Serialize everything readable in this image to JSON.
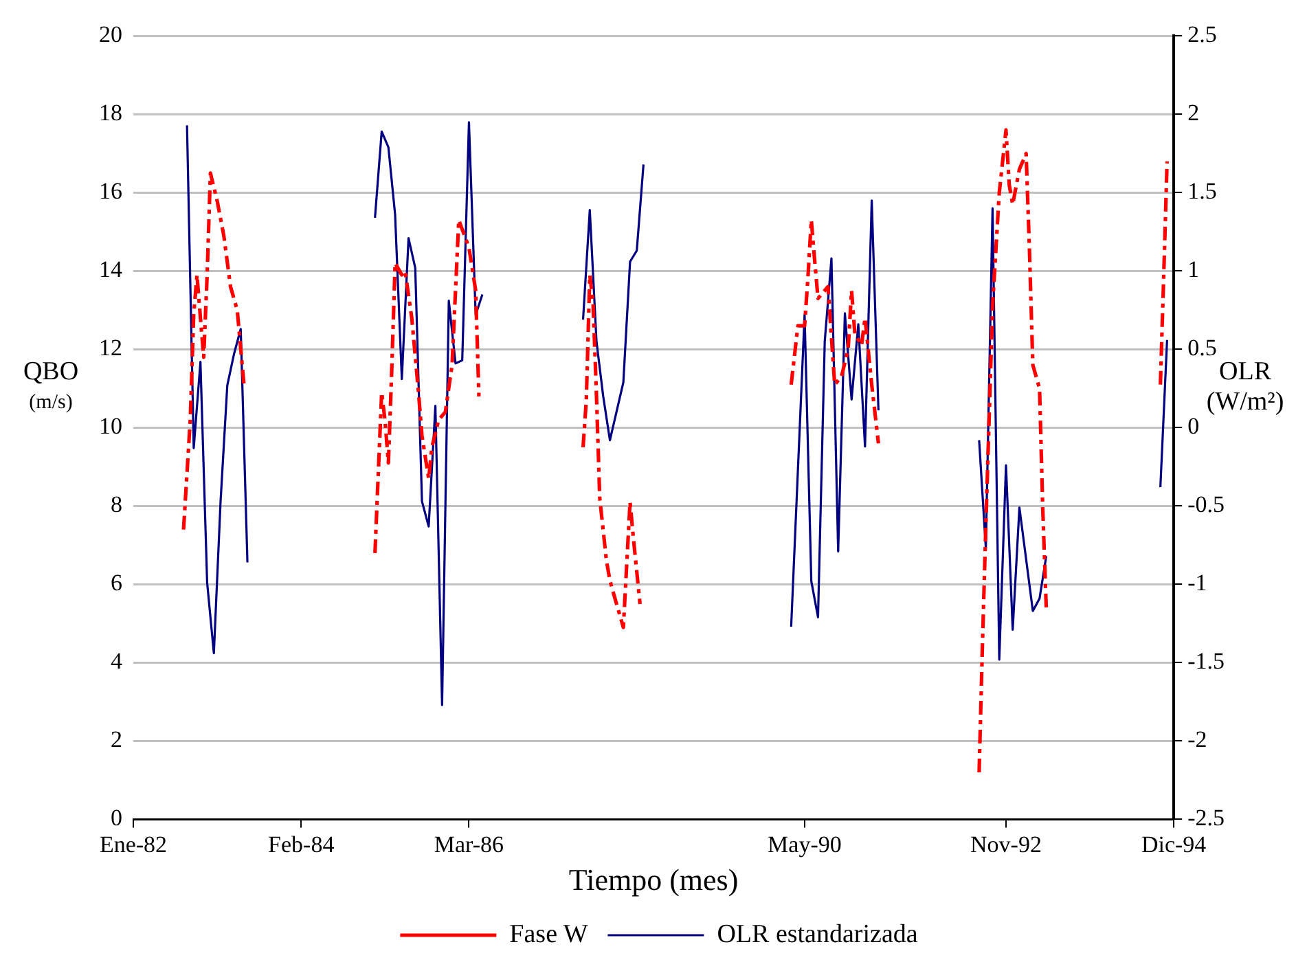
{
  "chart_data": {
    "type": "line",
    "xlabel": "Tiempo (mes)",
    "ylabel": "QBO (m/s)",
    "y2label": "OLR (W/m²)",
    "xlim": [
      "1982-01",
      "1994-12"
    ],
    "xticks": [
      {
        "value": "1982-01",
        "label": "Ene-82"
      },
      {
        "value": "1984-02",
        "label": "Feb-84"
      },
      {
        "value": "1986-03",
        "label": "Mar-86"
      },
      {
        "value": "1990-05",
        "label": "May-90"
      },
      {
        "value": "1992-11",
        "label": "Nov-92"
      },
      {
        "value": "1994-12",
        "label": "Dic-94"
      }
    ],
    "ylim": [
      0,
      20
    ],
    "yticks": [
      0,
      2,
      4,
      6,
      8,
      10,
      12,
      14,
      16,
      18,
      20
    ],
    "y2lim": [
      -2.5,
      2.5
    ],
    "y2ticks": [
      -2.5,
      -2,
      -1.5,
      -1,
      -0.5,
      0,
      0.5,
      1,
      1.5,
      2,
      2.5
    ],
    "grid": "y",
    "legend": "bottom",
    "marker": "none",
    "series": [
      {
        "name": "Fase W",
        "color": "#ff0000",
        "line_style": "dashed",
        "x": [
          "1982-08-16",
          "1982-09-16",
          "1982-10",
          "1982-10-16",
          "1982-11",
          "1982-11-16",
          "1982-12",
          "1982-12-16",
          "1983-01-16",
          "1983-02-16",
          "1983-03-16",
          "1983-04-16",
          "1983-05-16",
          "1984-01",
          "1985-01",
          "1985-01-16",
          "1985-02",
          "1985-02-16",
          "1985-03",
          "1985-03-16",
          "1985-04",
          "1985-05",
          "1985-05-16",
          "1985-06-16",
          "1985-07-16",
          "1985-08",
          "1985-09",
          "1985-09-16",
          "1985-10-16",
          "1985-11-16",
          "1985-12-16",
          "1986-01-16",
          "1986-03",
          "1986-04",
          "1986-04-16",
          "1987-01",
          "1987-08",
          "1987-08-16",
          "1987-09",
          "1987-09-16",
          "1987-10",
          "1987-10-16",
          "1987-11-16",
          "1987-12",
          "1987-12-16",
          "1988-02",
          "1988-03",
          "1988-03-16",
          "1988-04-16",
          "1989-01",
          "1990-03",
          "1990-04",
          "1990-05",
          "1990-05-16",
          "1990-06",
          "1990-06-16",
          "1990-07",
          "1990-08-16",
          "1990-09-16",
          "1990-10-16",
          "1990-11-16",
          "1990-12",
          "1990-12-16",
          "1991-01-16",
          "1991-02",
          "1991-03",
          "1991-04",
          "1992-01",
          "1992-07",
          "1992-07-16",
          "1992-08",
          "1992-08-16",
          "1992-09",
          "1992-10",
          "1992-11",
          "1992-11-16",
          "1992-12",
          "1993-01",
          "1993-02",
          "1993-02-16",
          "1993-03",
          "1993-04",
          "1993-04-16",
          "1993-05",
          "1994-01",
          "1994-10",
          "1994-10-16",
          "1994-11"
        ],
        "values": [
          7.4,
          10.2,
          12.9,
          13.9,
          12.8,
          11.8,
          13.9,
          16.5,
          15.8,
          14.9,
          13.6,
          13.0,
          11.1,
          null,
          6.8,
          8.8,
          10.9,
          10.2,
          9.1,
          11.4,
          14.2,
          13.9,
          14.0,
          12.8,
          10.9,
          9.8,
          8.7,
          9.5,
          10.2,
          10.4,
          11.6,
          15.3,
          14.6,
          13.5,
          10.8,
          null,
          9.5,
          10.7,
          13.9,
          13.2,
          10.8,
          8.2,
          6.6,
          6.1,
          5.8,
          4.9,
          8.1,
          7.2,
          5.5,
          null,
          11.1,
          12.6,
          12.6,
          13.8,
          15.3,
          14.3,
          13.3,
          13.6,
          11.1,
          11.3,
          12.0,
          13.5,
          12.4,
          12.1,
          12.8,
          11.1,
          9.6,
          null,
          1.2,
          4.4,
          7.5,
          10.2,
          13.1,
          16.0,
          17.6,
          16.2,
          15.7,
          16.6,
          17.0,
          14.6,
          11.6,
          11.0,
          7.9,
          5.4,
          null,
          11.1,
          13.8,
          16.8
        ]
      },
      {
        "name": "OLR estandarizada",
        "color": "#000080",
        "line_style": "solid",
        "axis": "y2",
        "x": [
          "1982-09",
          "1982-10",
          "1982-11",
          "1982-12",
          "1983-01",
          "1983-02",
          "1983-03",
          "1983-04",
          "1983-05",
          "1983-06",
          "1984-01",
          "1985-01",
          "1985-02",
          "1985-03",
          "1985-04",
          "1985-05",
          "1985-06",
          "1985-07",
          "1985-08",
          "1985-09",
          "1985-10",
          "1985-11",
          "1985-12",
          "1986-01",
          "1986-02",
          "1986-03",
          "1986-04",
          "1986-05",
          "1987-01",
          "1987-08",
          "1987-09",
          "1987-10",
          "1987-11",
          "1987-12",
          "1988-02",
          "1988-03",
          "1988-04",
          "1988-05",
          "1989-01",
          "1990-03",
          "1990-05",
          "1990-06",
          "1990-07",
          "1990-08",
          "1990-09",
          "1990-10",
          "1990-11",
          "1990-12",
          "1991-01",
          "1991-02",
          "1991-03",
          "1991-04",
          "1992-01",
          "1992-07",
          "1992-08",
          "1992-09",
          "1992-10",
          "1992-11",
          "1992-12",
          "1993-01",
          "1993-03",
          "1993-04",
          "1993-05",
          "1994-01",
          "1994-10",
          "1994-11"
        ],
        "values": [
          1.93,
          -0.13,
          0.42,
          -0.99,
          -1.44,
          -0.47,
          0.27,
          0.47,
          0.63,
          -0.86,
          null,
          1.34,
          1.89,
          1.79,
          1.36,
          0.31,
          1.21,
          1.02,
          -0.47,
          -0.63,
          0.14,
          -1.77,
          0.81,
          0.41,
          0.43,
          1.95,
          0.72,
          0.85,
          null,
          0.69,
          1.39,
          0.55,
          0.2,
          -0.08,
          0.29,
          1.06,
          1.13,
          1.68,
          null,
          -1.27,
          0.72,
          -0.98,
          -1.21,
          0.55,
          1.08,
          -0.79,
          0.73,
          0.18,
          0.66,
          -0.12,
          1.45,
          0.11,
          null,
          -0.08,
          -0.77,
          1.4,
          -1.48,
          -0.24,
          -1.29,
          -0.51,
          -1.17,
          -1.09,
          -0.82,
          null,
          -0.38,
          0.56
        ]
      }
    ]
  }
}
